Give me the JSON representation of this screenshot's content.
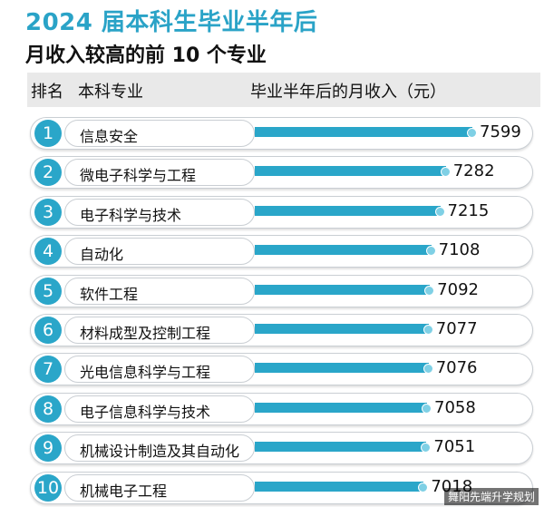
{
  "title_line1": "2024 届本科生毕业半年后",
  "title_line2": "月收入较高的前 10 个专业",
  "headers": {
    "rank": "排名",
    "major": "本科专业",
    "income": "毕业半年后的月收入（元）"
  },
  "watermark": "舞阳先端升学规划",
  "colors": {
    "accent": "#2aa6c9",
    "bar_end": "#7fd0e5",
    "header_band": "#e9e9e9"
  },
  "chart_data": {
    "type": "bar",
    "orientation": "horizontal",
    "title": "2024 届本科生毕业半年后 月收入较高的前 10 个专业",
    "xlabel": "毕业半年后的月收入（元）",
    "ylabel": "本科专业",
    "categories": [
      "信息安全",
      "微电子科学与工程",
      "电子科学与技术",
      "自动化",
      "软件工程",
      "材料成型及控制工程",
      "光电信息科学与工程",
      "电子信息科学与技术",
      "机械设计制造及其自动化",
      "机械电子工程"
    ],
    "ranks": [
      "1",
      "2",
      "3",
      "4",
      "5",
      "6",
      "7",
      "8",
      "9",
      "10"
    ],
    "values": [
      7599,
      7282,
      7215,
      7108,
      7092,
      7077,
      7076,
      7058,
      7051,
      7018
    ],
    "value_labels": [
      "7599",
      "7282",
      "7215",
      "7108",
      "7092",
      "7077",
      "7076",
      "7058",
      "7051",
      "7018"
    ]
  }
}
